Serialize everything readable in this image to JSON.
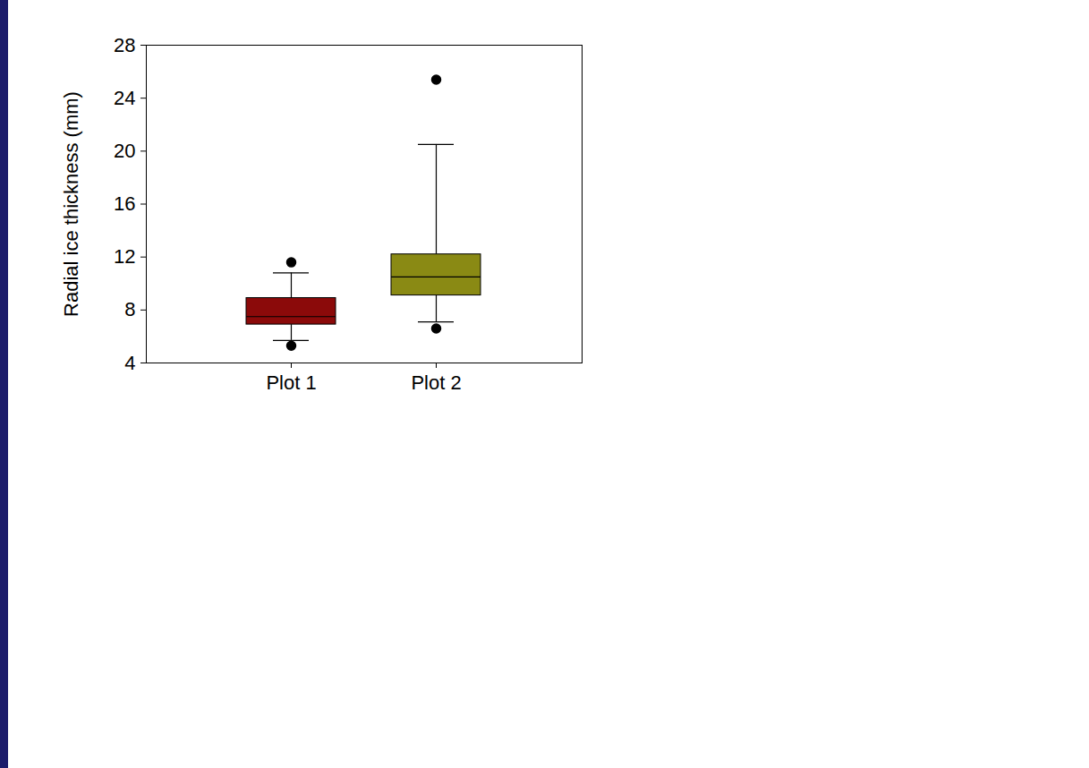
{
  "chart_data": {
    "type": "box",
    "y_label": "Radial ice thickness (mm)",
    "categories": [
      "Plot 1",
      "Plot 2"
    ],
    "boxes": [
      {
        "name": "Plot 1",
        "color": "#8b0a0a",
        "whisker_low": 5.7,
        "q1": 6.9,
        "median": 7.5,
        "q3": 8.9,
        "whisker_high": 10.8,
        "outliers": [
          5.3,
          11.6
        ]
      },
      {
        "name": "Plot 2",
        "color": "#8a8a14",
        "whisker_low": 7.1,
        "q1": 9.1,
        "median": 10.5,
        "q3": 12.2,
        "whisker_high": 20.5,
        "outliers": [
          6.6,
          25.4
        ]
      }
    ],
    "ylim": [
      4,
      28
    ],
    "yticks": [
      4,
      8,
      12,
      16,
      20,
      24,
      28
    ],
    "grid": false
  }
}
